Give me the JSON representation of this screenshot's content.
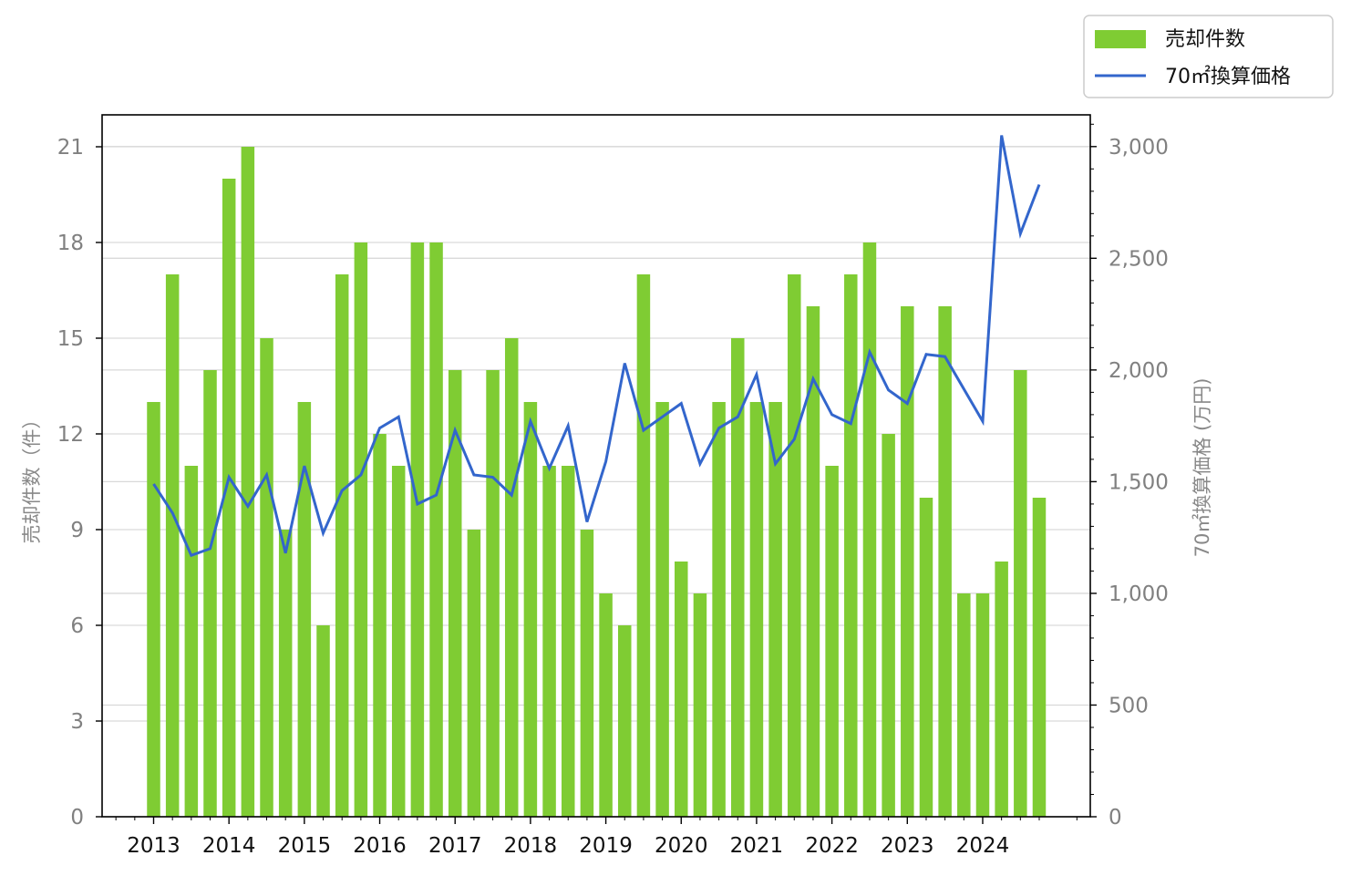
{
  "chart_data": {
    "type": "bar",
    "xtick_labels": [
      "2013",
      "2014",
      "2015",
      "2016",
      "2017",
      "2018",
      "2019",
      "2020",
      "2021",
      "2022",
      "2023",
      "2024"
    ],
    "x": [
      "2013Q1",
      "2013Q2",
      "2013Q3",
      "2013Q4",
      "2014Q1",
      "2014Q2",
      "2014Q3",
      "2014Q4",
      "2015Q1",
      "2015Q2",
      "2015Q3",
      "2015Q4",
      "2016Q1",
      "2016Q2",
      "2016Q3",
      "2016Q4",
      "2017Q1",
      "2017Q2",
      "2017Q3",
      "2017Q4",
      "2018Q1",
      "2018Q2",
      "2018Q3",
      "2018Q4",
      "2019Q1",
      "2019Q2",
      "2019Q3",
      "2019Q4",
      "2020Q1",
      "2020Q2",
      "2020Q3",
      "2020Q4",
      "2021Q1",
      "2021Q2",
      "2021Q3",
      "2021Q4",
      "2022Q1",
      "2022Q2",
      "2022Q3",
      "2022Q4",
      "2023Q1",
      "2023Q2",
      "2023Q3",
      "2023Q4",
      "2024Q1",
      "2024Q2",
      "2024Q3",
      "2024Q4"
    ],
    "series": [
      {
        "name": "売却件数",
        "type": "bar",
        "axis": "left",
        "color": "#7fcc33",
        "values": [
          13,
          17,
          11,
          14,
          20,
          21,
          15,
          9,
          13,
          6,
          17,
          18,
          12,
          11,
          18,
          18,
          14,
          9,
          14,
          15,
          13,
          11,
          11,
          9,
          7,
          6,
          17,
          13,
          8,
          7,
          13,
          15,
          13,
          13,
          17,
          16,
          11,
          17,
          18,
          12,
          16,
          10,
          16,
          7,
          7,
          8,
          14,
          10
        ]
      },
      {
        "name": "70㎡換算価格",
        "type": "line",
        "axis": "right",
        "color": "#3366cc",
        "values": [
          1490,
          1360,
          1170,
          1200,
          1520,
          1390,
          1530,
          1180,
          1570,
          1270,
          1460,
          1530,
          1740,
          1790,
          1400,
          1440,
          1730,
          1530,
          1520,
          1440,
          1770,
          1560,
          1750,
          1320,
          1590,
          2030,
          1730,
          1790,
          1850,
          1580,
          1740,
          1790,
          1980,
          1580,
          1690,
          1960,
          1800,
          1760,
          2080,
          1910,
          1850,
          2070,
          2060,
          null,
          1770,
          3050,
          2610,
          2830
        ]
      }
    ],
    "ylabel": "売却件数（件）",
    "ylabel_right": "70㎡換算価格 (万円)",
    "ylim": [
      0,
      22
    ],
    "yticks": [
      "0",
      "3",
      "6",
      "9",
      "12",
      "15",
      "18",
      "21"
    ],
    "ylim_right": [
      0,
      3142
    ],
    "yticks_right": [
      "0",
      "500",
      "1,000",
      "1,500",
      "2,000",
      "2,500",
      "3,000"
    ],
    "grid": "horizontal gridlines on both axes",
    "legend_placement": "top-right, outside plot"
  }
}
